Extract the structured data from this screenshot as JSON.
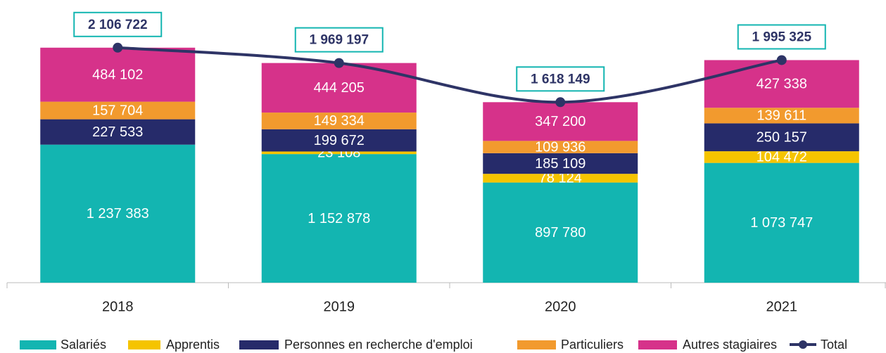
{
  "chart_data": {
    "type": "bar",
    "categories": [
      "2018",
      "2019",
      "2020",
      "2021"
    ],
    "ylim": [
      0,
      2200000
    ],
    "series": [
      {
        "name": "Salariés",
        "color": "#13b5b1",
        "values": [
          1237383,
          1152878,
          897780,
          1073747
        ],
        "value_labels": [
          "1 237 383",
          "1 152 878",
          "897 780",
          "1 073 747"
        ]
      },
      {
        "name": "Apprentis",
        "color": "#f5c400",
        "values": [
          null,
          23108,
          78124,
          104472
        ],
        "value_labels": [
          null,
          "23 108",
          "78 124",
          "104 472"
        ]
      },
      {
        "name": "Personnes en recherche d'emploi",
        "color": "#262b6a",
        "values": [
          227533,
          199672,
          185109,
          250157
        ],
        "value_labels": [
          "227 533",
          "199 672",
          "185 109",
          "250 157"
        ]
      },
      {
        "name": "Particuliers",
        "color": "#f29a2e",
        "values": [
          157704,
          149334,
          109936,
          139611
        ],
        "value_labels": [
          "157 704",
          "149 334",
          "109 936",
          "139 611"
        ]
      },
      {
        "name": "Autres stagiaires",
        "color": "#d6328a",
        "values": [
          484102,
          444205,
          347200,
          427338
        ],
        "value_labels": [
          "484 102",
          "444 205",
          "347 200",
          "427 338"
        ]
      },
      {
        "name": "Total",
        "type": "line",
        "color": "#2e3466",
        "values": [
          2106722,
          1969197,
          1618149,
          1995325
        ],
        "value_labels": [
          "2 106 722",
          "1 969 197",
          "1 618 149",
          "1 995 325"
        ]
      }
    ]
  }
}
